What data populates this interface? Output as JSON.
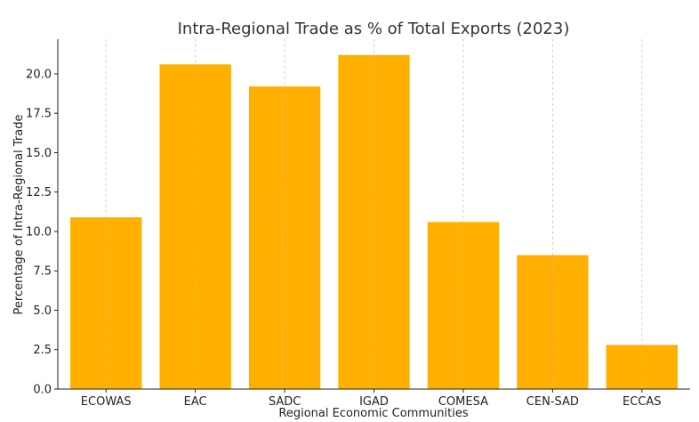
{
  "chart_data": {
    "type": "bar",
    "title": "Intra-Regional Trade as % of Total Exports (2023)",
    "xlabel": "Regional Economic Communities",
    "ylabel": "Percentage of Intra-Regional Trade",
    "categories": [
      "ECOWAS",
      "EAC",
      "SADC",
      "IGAD",
      "COMESA",
      "CEN-SAD",
      "ECCAS"
    ],
    "values": [
      10.9,
      20.6,
      19.2,
      21.2,
      10.6,
      8.5,
      2.8
    ],
    "ylim": [
      0,
      22.2
    ],
    "yticks": [
      "0.0",
      "2.5",
      "5.0",
      "7.5",
      "10.0",
      "12.5",
      "15.0",
      "17.5",
      "20.0"
    ],
    "grid": "x-dashed",
    "legend": "none",
    "colors": {
      "bar": "#ffb000",
      "grid": "#c8c8c8",
      "axis": "#222222"
    }
  }
}
